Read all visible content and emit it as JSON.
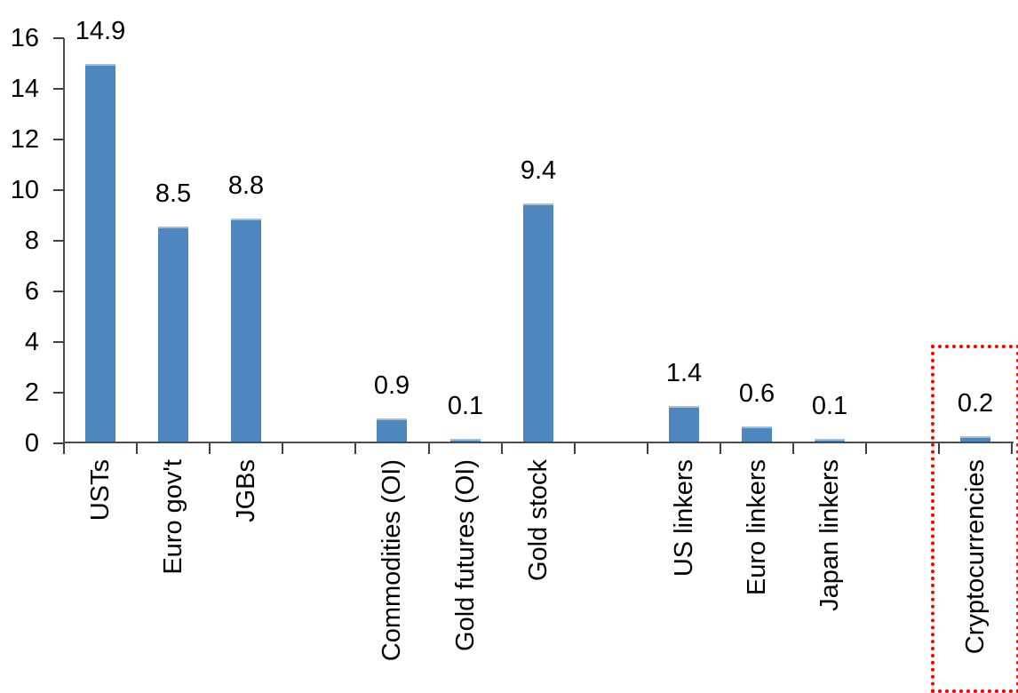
{
  "chart_data": {
    "type": "bar",
    "title": "",
    "xlabel": "",
    "ylabel": "",
    "categories": [
      "USTs",
      "Euro gov't",
      "JGBs",
      "",
      "Commodities (OI)",
      "Gold futures (OI)",
      "Gold stock",
      "",
      "US linkers",
      "Euro linkers",
      "Japan linkers",
      "",
      "Cryptocurrencies"
    ],
    "values": [
      14.9,
      8.5,
      8.8,
      null,
      0.9,
      0.1,
      9.4,
      null,
      1.4,
      0.6,
      0.1,
      null,
      0.2
    ],
    "bar_value_labels": [
      "14.9",
      "8.5",
      "8.8",
      "",
      "0.9",
      "0.1",
      "9.4",
      "",
      "1.4",
      "0.6",
      "0.1",
      "",
      "0.2"
    ],
    "ylim": [
      0,
      16
    ],
    "yticks": [
      0,
      2,
      4,
      6,
      8,
      10,
      12,
      14,
      16
    ],
    "grid": false,
    "legend_position": "none",
    "colors": {
      "bar": "#4e86be",
      "bar_top_edge": "#9dbfdf",
      "axis": "#4d4d4d",
      "text": "#000000",
      "highlight_box": "#ff0000"
    },
    "highlight": {
      "category": "Cryptocurrencies",
      "box_style": "red-dotted-box"
    }
  }
}
